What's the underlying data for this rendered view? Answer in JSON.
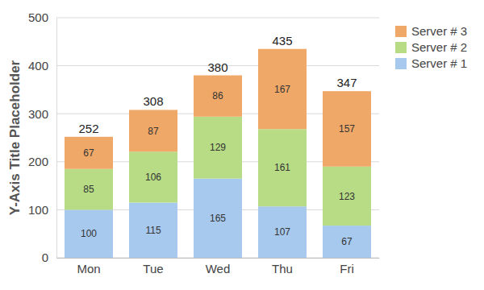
{
  "chart_data": {
    "type": "bar",
    "stacked": true,
    "data_labels": true,
    "grid": true,
    "legend": "top-right",
    "y_label": "Y-Axis Title Placeholder",
    "categories": [
      "Mon",
      "Tue",
      "Wed",
      "Thu",
      "Fri"
    ],
    "series": [
      {
        "name": "Server # 1",
        "color": "#a8c9ee",
        "values": [
          100,
          115,
          165,
          107,
          67
        ]
      },
      {
        "name": "Server # 2",
        "color": "#b7dc85",
        "values": [
          85,
          106,
          129,
          161,
          123
        ]
      },
      {
        "name": "Server # 3",
        "color": "#f0a868",
        "values": [
          67,
          87,
          86,
          167,
          157
        ]
      }
    ],
    "totals": [
      252,
      308,
      380,
      435,
      347
    ],
    "ylim": [
      0,
      500
    ],
    "yticks": [
      0,
      100,
      200,
      300,
      400,
      500
    ]
  }
}
